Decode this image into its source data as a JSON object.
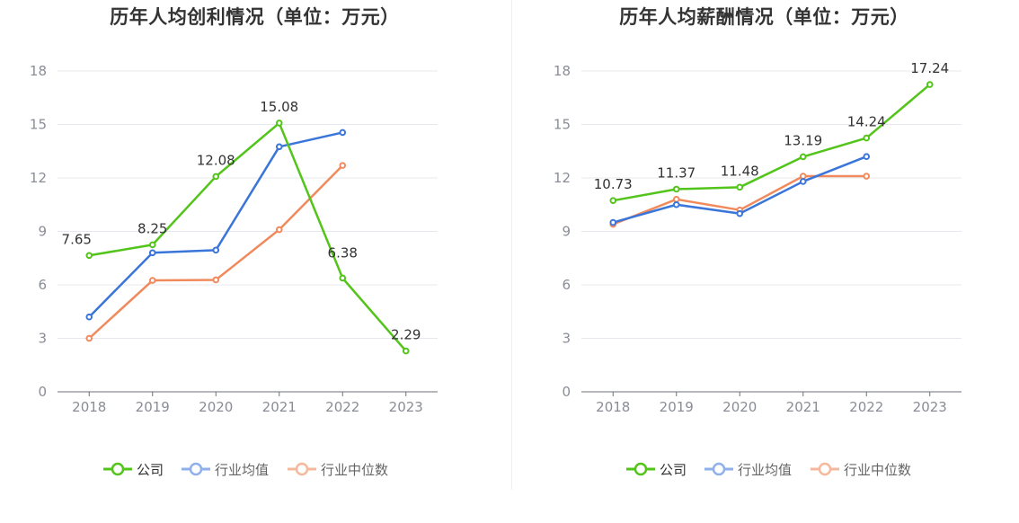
{
  "colors": {
    "company": "#52c41a",
    "industry_avg": "#3a75d9",
    "industry_median": "#f08a5d"
  },
  "legend": {
    "company": "公司",
    "industry_avg": "行业均值",
    "industry_median": "行业中位数"
  },
  "chart_data": [
    {
      "type": "line",
      "title": "历年人均创利情况（单位：万元）",
      "categories": [
        "2018",
        "2019",
        "2020",
        "2021",
        "2022",
        "2023"
      ],
      "ylim": [
        0,
        18
      ],
      "yticks": [
        "0",
        "3",
        "6",
        "9",
        "12",
        "15",
        "18"
      ],
      "grid": true,
      "legend_position": "bottom",
      "series": [
        {
          "name": "公司",
          "key": "company",
          "values": [
            7.65,
            8.25,
            12.08,
            15.08,
            6.38,
            2.29
          ],
          "labels": [
            "7.65",
            "8.25",
            "12.08",
            "15.08",
            "6.38",
            "2.29"
          ]
        },
        {
          "name": "行业均值",
          "key": "industry_avg",
          "values": [
            4.2,
            7.8,
            7.95,
            13.75,
            14.55,
            null
          ]
        },
        {
          "name": "行业中位数",
          "key": "industry_median",
          "values": [
            3.0,
            6.25,
            6.28,
            9.1,
            12.7,
            null
          ]
        }
      ]
    },
    {
      "type": "line",
      "title": "历年人均薪酬情况（单位：万元）",
      "categories": [
        "2018",
        "2019",
        "2020",
        "2021",
        "2022",
        "2023"
      ],
      "ylim": [
        0,
        18
      ],
      "yticks": [
        "0",
        "3",
        "6",
        "9",
        "12",
        "15",
        "18"
      ],
      "grid": true,
      "legend_position": "bottom",
      "series": [
        {
          "name": "公司",
          "key": "company",
          "values": [
            10.73,
            11.37,
            11.48,
            13.19,
            14.24,
            17.24
          ],
          "labels": [
            "10.73",
            "11.37",
            "11.48",
            "13.19",
            "14.24",
            "17.24"
          ]
        },
        {
          "name": "行业均值",
          "key": "industry_avg",
          "values": [
            9.5,
            10.5,
            10.0,
            11.8,
            13.2,
            null
          ]
        },
        {
          "name": "行业中位数",
          "key": "industry_median",
          "values": [
            9.4,
            10.8,
            10.2,
            12.1,
            12.1,
            null
          ]
        }
      ]
    }
  ]
}
